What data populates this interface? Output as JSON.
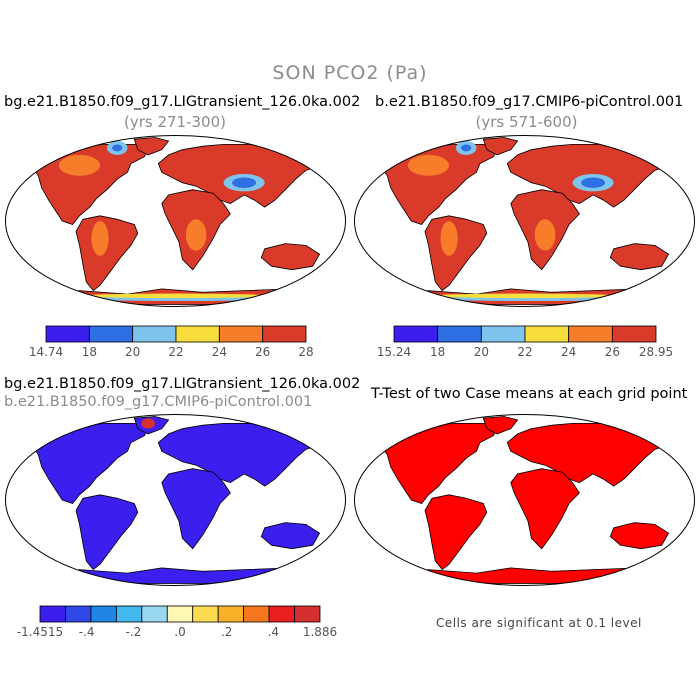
{
  "title": "SON PCO2 (Pa)",
  "panels": [
    {
      "id": "case1",
      "title": "bg.e21.B1850.f09_g17.LIGtransient_126.0ka.002",
      "subtitle": "(yrs 271-300)",
      "colorbar": {
        "colors": [
          "#3b1fee",
          "#2f6fe4",
          "#7fc4ec",
          "#f7de3c",
          "#f77d2a",
          "#d93a2a"
        ],
        "labels": [
          "14.74",
          "18",
          "20",
          "22",
          "24",
          "26",
          "28"
        ]
      }
    },
    {
      "id": "case2",
      "title": "b.e21.B1850.f09_g17.CMIP6-piControl.001",
      "subtitle": "(yrs 571-600)",
      "colorbar": {
        "colors": [
          "#3b1fee",
          "#2f6fe4",
          "#7fc4ec",
          "#f7de3c",
          "#f77d2a",
          "#d93a2a"
        ],
        "labels": [
          "15.24",
          "18",
          "20",
          "22",
          "24",
          "26",
          "28.95"
        ]
      }
    },
    {
      "id": "difference",
      "title": "bg.e21.B1850.f09_g17.LIGtransient_126.0ka.002",
      "subtitle": "b.e21.B1850.f09_g17.CMIP6-piControl.001",
      "colorbar": {
        "colors": [
          "#3b1fee",
          "#2f49e6",
          "#1f86e6",
          "#42b8ee",
          "#9ad8f2",
          "#fef8b2",
          "#fddc52",
          "#f9b12a",
          "#f6771f",
          "#ea1f1f",
          "#d53030"
        ],
        "labels": [
          "-1.4515",
          "-.4",
          "-.2",
          ".0",
          ".2",
          ".4",
          "1.886"
        ]
      }
    },
    {
      "id": "ttest",
      "title": "T-Test of two Case means at each grid point",
      "note": "Cells are significant at 0.1 level"
    }
  ]
}
